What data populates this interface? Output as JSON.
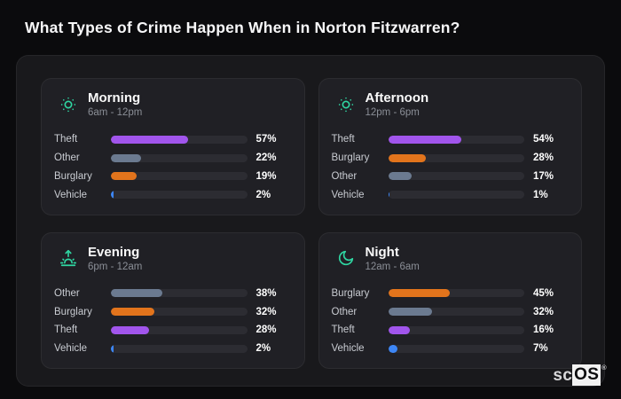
{
  "header": {
    "title": "What Types of Crime Happen When in Norton Fitzwarren?"
  },
  "watermark": {
    "prefix": "sc",
    "boxed": "OS",
    "reg": "®"
  },
  "colors": {
    "theft": "#a155ec",
    "other": "#6b7a90",
    "burglary": "#e2741c",
    "vehicle": "#3d86f5",
    "accent_teal": "#2fd6a2",
    "track": "#2c2c32",
    "card_bg": "#202025",
    "container_bg": "#19191c",
    "page_bg": "#0b0b0d"
  },
  "chart_data": [
    {
      "type": "bar",
      "orientation": "horizontal",
      "title": "Morning",
      "subtitle": "6am - 12pm",
      "icon": "sun-icon",
      "xlim": [
        0,
        100
      ],
      "categories": [
        "Theft",
        "Other",
        "Burglary",
        "Vehicle"
      ],
      "values": [
        57,
        22,
        19,
        2
      ],
      "value_labels": [
        "57%",
        "22%",
        "19%",
        "2%"
      ],
      "bar_colors": [
        "#a155ec",
        "#6b7a90",
        "#e2741c",
        "#3d86f5"
      ]
    },
    {
      "type": "bar",
      "orientation": "horizontal",
      "title": "Afternoon",
      "subtitle": "12pm - 6pm",
      "icon": "sun-icon",
      "xlim": [
        0,
        100
      ],
      "categories": [
        "Theft",
        "Burglary",
        "Other",
        "Vehicle"
      ],
      "values": [
        54,
        28,
        17,
        1
      ],
      "value_labels": [
        "54%",
        "28%",
        "17%",
        "1%"
      ],
      "bar_colors": [
        "#a155ec",
        "#e2741c",
        "#6b7a90",
        "#3d86f5"
      ]
    },
    {
      "type": "bar",
      "orientation": "horizontal",
      "title": "Evening",
      "subtitle": "6pm - 12am",
      "icon": "sunset-icon",
      "xlim": [
        0,
        100
      ],
      "categories": [
        "Other",
        "Burglary",
        "Theft",
        "Vehicle"
      ],
      "values": [
        38,
        32,
        28,
        2
      ],
      "value_labels": [
        "38%",
        "32%",
        "28%",
        "2%"
      ],
      "bar_colors": [
        "#6b7a90",
        "#e2741c",
        "#a155ec",
        "#3d86f5"
      ]
    },
    {
      "type": "bar",
      "orientation": "horizontal",
      "title": "Night",
      "subtitle": "12am - 6am",
      "icon": "moon-icon",
      "xlim": [
        0,
        100
      ],
      "categories": [
        "Burglary",
        "Other",
        "Theft",
        "Vehicle"
      ],
      "values": [
        45,
        32,
        16,
        7
      ],
      "value_labels": [
        "45%",
        "32%",
        "16%",
        "7%"
      ],
      "bar_colors": [
        "#e2741c",
        "#6b7a90",
        "#a155ec",
        "#3d86f5"
      ]
    }
  ]
}
